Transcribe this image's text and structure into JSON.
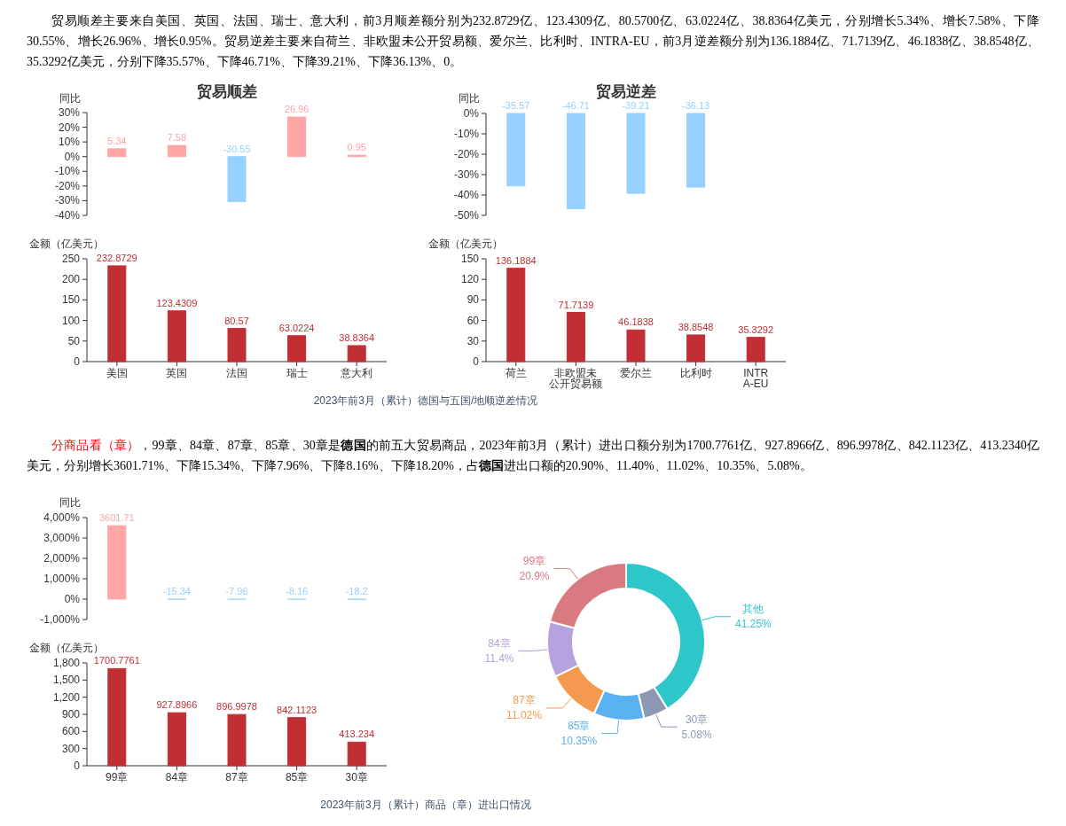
{
  "chart_data": [
    {
      "type": "bar",
      "title": "贸易顺差",
      "ylabel": "同比",
      "categories": [
        "美国",
        "英国",
        "法国",
        "瑞士",
        "意大利"
      ],
      "values": [
        5.34,
        7.58,
        -30.55,
        26.96,
        0.95
      ],
      "colors": [
        "#ffa6a6",
        "#ffa6a6",
        "#97d1ff",
        "#ffa6a6",
        "#ffa6a6"
      ],
      "ylim": [
        -40,
        30
      ],
      "yticks": [
        {
          "value": -40,
          "label": "-40%"
        },
        {
          "value": -30,
          "label": "-30%"
        },
        {
          "value": -20,
          "label": "-20%"
        },
        {
          "value": -10,
          "label": "-10%"
        },
        {
          "value": 0,
          "label": "0%"
        },
        {
          "value": 10,
          "label": "10%"
        },
        {
          "value": 20,
          "label": "20%"
        },
        {
          "value": 30,
          "label": "30%"
        }
      ],
      "data_labels": true,
      "tick_labels": "y",
      "annotations": [
        "贸易顺差主要来自美国、英国、法国、瑞士、意大利，前3月顺差额分别为232.8729亿、123.4309亿、80.5700亿、63.0224亿、38.8364亿美元，分别增长5.34%、增长7.58%、下降30.55%、增长26.96%、增长0.95%。贸易逆差主要来自荷兰、非欧盟未公开贸易额、爱尔兰、比利时、INTRA-EU，前3月逆差额分别为136.1884亿、71.7139亿、46.1838亿、38.8548亿、35.3292亿美元，分别下降35.57%、下降46.71%、下降39.21%、下降36.13%、0。"
      ]
    },
    {
      "type": "bar",
      "title": "贸易逆差",
      "ylabel": "同比",
      "categories": [
        "荷兰",
        "非欧盟未公开贸易额",
        "爱尔兰",
        "比利时",
        "INTRA-EU"
      ],
      "values": [
        -35.57,
        -46.71,
        -39.21,
        -36.13,
        null
      ],
      "color": "#97d1ff",
      "ylim": [
        -50,
        0
      ],
      "yticks": [
        {
          "value": -50,
          "label": "-50%"
        },
        {
          "value": -40,
          "label": "-40%"
        },
        {
          "value": -30,
          "label": "-30%"
        },
        {
          "value": -20,
          "label": "-20%"
        },
        {
          "value": -10,
          "label": "-10%"
        },
        {
          "value": 0,
          "label": "0%"
        }
      ],
      "data_labels": true,
      "tick_labels": "y"
    },
    {
      "type": "bar",
      "ylabel": "金额（亿美元）",
      "categories": [
        "美国",
        "英国",
        "法国",
        "瑞士",
        "意大利"
      ],
      "values": [
        232.8729,
        123.4309,
        80.57,
        63.0224,
        38.8364
      ],
      "color": "#c12e34",
      "ylim": [
        0,
        250
      ],
      "yticks": [
        0,
        50,
        100,
        150,
        200,
        250
      ],
      "data_labels": true,
      "annotations": [
        "2023年前3月（累计）德国与五国/地顺逆差情况"
      ]
    },
    {
      "type": "bar",
      "ylabel": "金额（亿美元）",
      "categories": [
        "荷兰",
        "非欧盟未公开贸易额",
        "爱尔兰",
        "比利时",
        "INTRA-EU"
      ],
      "values": [
        136.1884,
        71.7139,
        46.1838,
        38.8548,
        35.3292
      ],
      "color": "#c12e34",
      "ylim": [
        0,
        150
      ],
      "yticks": [
        0,
        30,
        60,
        90,
        120,
        150
      ],
      "data_labels": true
    },
    {
      "type": "bar",
      "ylabel": "同比",
      "categories": [
        "99章",
        "84章",
        "87章",
        "85章",
        "30章"
      ],
      "values": [
        3601.71,
        -15.34,
        -7.96,
        -8.16,
        -18.2
      ],
      "colors": [
        "#ffa6a6",
        "#97d1ff",
        "#97d1ff",
        "#97d1ff",
        "#97d1ff"
      ],
      "ylim": [
        -1000,
        4000
      ],
      "yticks": [
        {
          "value": -1000,
          "label": "-1,000%"
        },
        {
          "value": 0,
          "label": "0%"
        },
        {
          "value": 1000,
          "label": "1,000%"
        },
        {
          "value": 2000,
          "label": "2,000%"
        },
        {
          "value": 3000,
          "label": "3,000%"
        },
        {
          "value": 4000,
          "label": "4,000%"
        }
      ],
      "data_labels": true,
      "tick_labels": "y",
      "annotations": [
        "分商品看（章）",
        "，99章、84章、87章、85章、30章是",
        "德国",
        "的前五大贸易商品，2023年前3月（累计）进出口额分别为1700.7761亿、927.8966亿、896.9978亿、842.1123亿、413.2340亿",
        "美元，分别增长3601.71%、下降15.34%、下降7.96%、下降8.16%、下降18.20%，占",
        "德国",
        "进出口额的20.90%、11.40%、11.02%、10.35%、5.08%。"
      ]
    },
    {
      "type": "bar",
      "ylabel": "金额（亿美元）",
      "categories": [
        "99章",
        "84章",
        "87章",
        "85章",
        "30章"
      ],
      "values": [
        1700.7761,
        927.8966,
        896.9978,
        842.1123,
        413.234
      ],
      "color": "#c12e34",
      "ylim": [
        0,
        1800
      ],
      "yticks": [
        0,
        300,
        600,
        900,
        {
          "value": 1200,
          "label": "1,200"
        },
        {
          "value": 1500,
          "label": "1,500"
        },
        {
          "value": 1800,
          "label": "1,800"
        }
      ],
      "data_labels": true,
      "annotations": [
        "2023年前3月（累计）商品（章）进出口情况"
      ]
    },
    {
      "type": "donut",
      "categories": [
        "其他",
        "30章",
        "85章",
        "87章",
        "84章",
        "99章"
      ],
      "values": [
        41.25,
        5.08,
        10.35,
        11.02,
        11.4,
        20.9
      ],
      "colors": [
        "#2ec7c9",
        "#8d98b3",
        "#5ab1ef",
        "#f5994e",
        "#b6a2de",
        "#d87a80"
      ],
      "value_labels": [
        "41.25%",
        "5.08%",
        "10.35%",
        "11.02%",
        "11.4%",
        "20.9%"
      ]
    }
  ]
}
